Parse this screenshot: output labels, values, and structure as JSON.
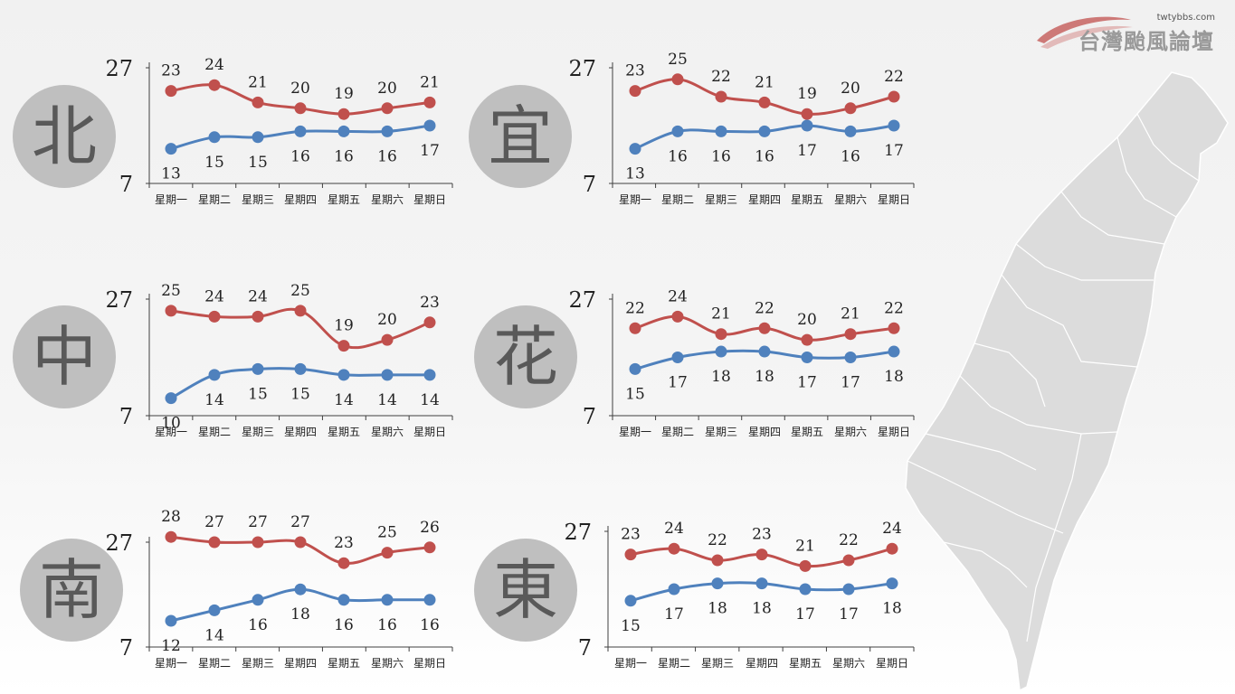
{
  "logo": {
    "site": "twtybbs.com",
    "name": "台灣颱風論壇"
  },
  "colors": {
    "high": "#c0504d",
    "low": "#4f81bd",
    "badge": "#bfbfbf",
    "badge_text": "#595959",
    "axis": "#404040",
    "map_fill": "#dcdcdc",
    "map_stroke": "#ffffff"
  },
  "map": {
    "name": "taiwan-map"
  },
  "chart_data": [
    {
      "type": "line",
      "region": "北",
      "categories": [
        "星期一",
        "星期二",
        "星期三",
        "星期四",
        "星期五",
        "星期六",
        "星期日"
      ],
      "ylim": [
        7,
        27
      ],
      "yticks": [
        "7",
        "27"
      ],
      "series": [
        {
          "name": "",
          "role": "high",
          "values": [
            23,
            24,
            21,
            20,
            19,
            20,
            21
          ]
        },
        {
          "name": "",
          "role": "low",
          "values": [
            13,
            15,
            15,
            16,
            16,
            16,
            17
          ]
        }
      ]
    },
    {
      "type": "line",
      "region": "宜",
      "categories": [
        "星期一",
        "星期二",
        "星期三",
        "星期四",
        "星期五",
        "星期六",
        "星期日"
      ],
      "ylim": [
        7,
        27
      ],
      "yticks": [
        "7",
        "27"
      ],
      "series": [
        {
          "name": "",
          "role": "high",
          "values": [
            23,
            25,
            22,
            21,
            19,
            20,
            22
          ]
        },
        {
          "name": "",
          "role": "low",
          "values": [
            13,
            16,
            16,
            16,
            17,
            16,
            17
          ]
        }
      ]
    },
    {
      "type": "line",
      "region": "中",
      "categories": [
        "星期一",
        "星期二",
        "星期三",
        "星期四",
        "星期五",
        "星期六",
        "星期日"
      ],
      "ylim": [
        7,
        27
      ],
      "yticks": [
        "7",
        "27"
      ],
      "series": [
        {
          "name": "",
          "role": "high",
          "values": [
            25,
            24,
            24,
            25,
            19,
            20,
            23
          ]
        },
        {
          "name": "",
          "role": "low",
          "values": [
            10,
            14,
            15,
            15,
            14,
            14,
            14
          ]
        }
      ]
    },
    {
      "type": "line",
      "region": "花",
      "categories": [
        "星期一",
        "星期二",
        "星期三",
        "星期四",
        "星期五",
        "星期六",
        "星期日"
      ],
      "ylim": [
        7,
        27
      ],
      "yticks": [
        "7",
        "27"
      ],
      "series": [
        {
          "name": "",
          "role": "high",
          "values": [
            22,
            24,
            21,
            22,
            20,
            21,
            22
          ]
        },
        {
          "name": "",
          "role": "low",
          "values": [
            15,
            17,
            18,
            18,
            17,
            17,
            18
          ]
        }
      ]
    },
    {
      "type": "line",
      "region": "南",
      "categories": [
        "星期一",
        "星期二",
        "星期三",
        "星期四",
        "星期五",
        "星期六",
        "星期日"
      ],
      "ylim": [
        7,
        27
      ],
      "yticks": [
        "7",
        "27"
      ],
      "series": [
        {
          "name": "",
          "role": "high",
          "values": [
            28,
            27,
            27,
            27,
            23,
            25,
            26
          ]
        },
        {
          "name": "",
          "role": "low",
          "values": [
            12,
            14,
            16,
            18,
            16,
            16,
            16
          ]
        }
      ]
    },
    {
      "type": "line",
      "region": "東",
      "categories": [
        "星期一",
        "星期二",
        "星期三",
        "星期四",
        "星期五",
        "星期六",
        "星期日"
      ],
      "ylim": [
        7,
        27
      ],
      "yticks": [
        "7",
        "27"
      ],
      "series": [
        {
          "name": "",
          "role": "high",
          "values": [
            23,
            24,
            22,
            23,
            21,
            22,
            24
          ]
        },
        {
          "name": "",
          "role": "low",
          "values": [
            15,
            17,
            18,
            18,
            17,
            17,
            18
          ]
        }
      ]
    }
  ]
}
